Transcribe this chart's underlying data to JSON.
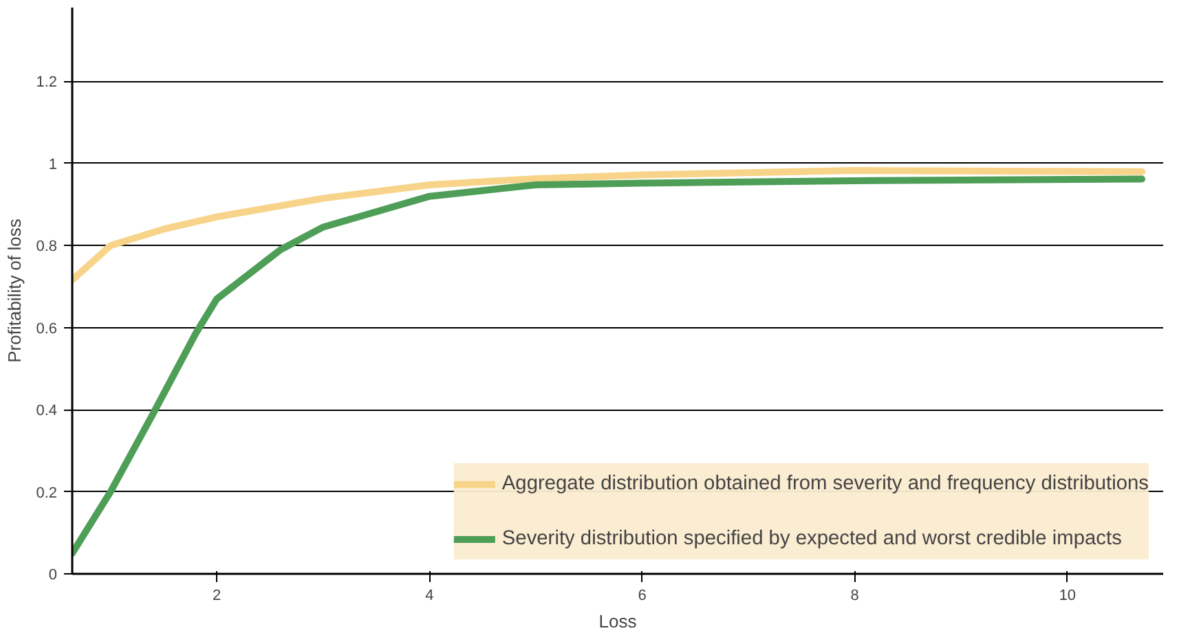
{
  "chart_data": {
    "type": "line",
    "xlabel": "Loss",
    "ylabel": "Profitability of loss",
    "xlim": [
      0.64,
      10.9
    ],
    "ylim": [
      0,
      1.38
    ],
    "xticks": [
      2,
      4,
      6,
      8,
      10
    ],
    "yticks": [
      0,
      0.2,
      0.4,
      0.6,
      0.8,
      1,
      1.2
    ],
    "grid": "y",
    "legend": "bottom right",
    "line_style": "solid",
    "series": [
      {
        "name": "Aggregate distribution obtained from severity and frequency distributions",
        "color": "#f7d48a",
        "x": [
          0.64,
          1,
          1.5,
          2,
          3,
          4,
          5,
          6,
          8,
          10.7
        ],
        "values": [
          0.716,
          0.8,
          0.84,
          0.87,
          0.915,
          0.948,
          0.963,
          0.972,
          0.983,
          0.98
        ]
      },
      {
        "name": "Severity distribution specified by expected and worst credible impacts",
        "color": "#4e9e57",
        "x": [
          0.64,
          1,
          1.4,
          1.8,
          2,
          2.6,
          3,
          4,
          5,
          6,
          8,
          10.7
        ],
        "values": [
          0.05,
          0.2,
          0.39,
          0.585,
          0.67,
          0.79,
          0.845,
          0.92,
          0.948,
          0.952,
          0.958,
          0.962
        ]
      }
    ]
  }
}
